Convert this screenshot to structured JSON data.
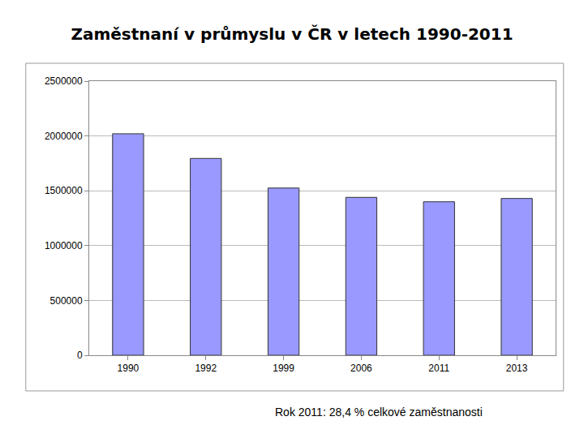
{
  "chart_data": {
    "type": "bar",
    "title": "Zaměstnaní v průmyslu v ČR v letech 1990-2011",
    "categories": [
      "1990",
      "1992",
      "1999",
      "2006",
      "2011",
      "2013"
    ],
    "values": [
      2020000,
      1795000,
      1525000,
      1440000,
      1400000,
      1430000
    ],
    "color": "#9999ff",
    "ylim": [
      0,
      2500000
    ],
    "yticks": [
      0,
      500000,
      1000000,
      1500000,
      2000000,
      2500000
    ],
    "grid": true,
    "annotations": [
      "Rok 2011: 28,4 % celkové zaměstnanosti"
    ]
  }
}
